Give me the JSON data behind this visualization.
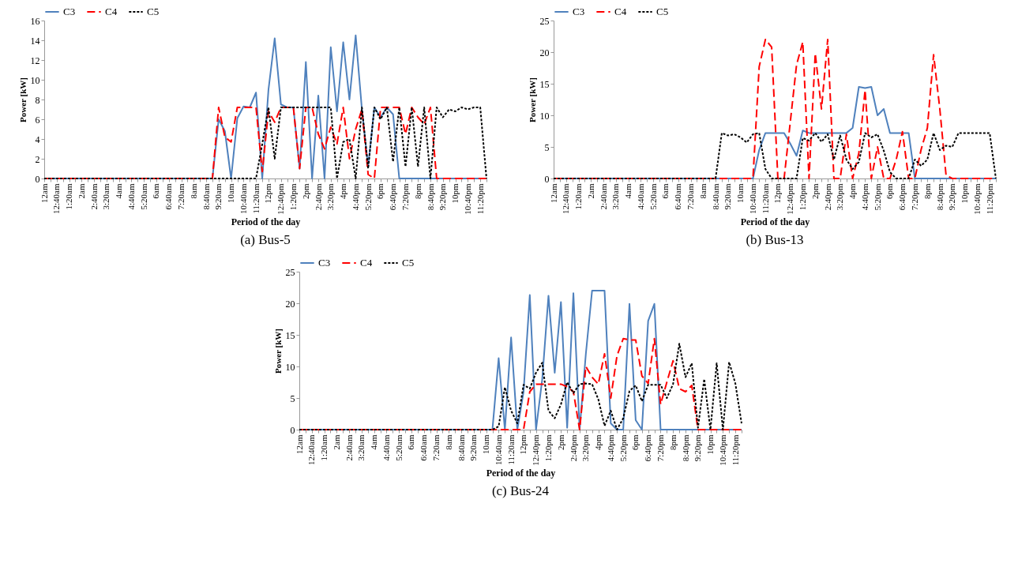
{
  "chart_data": [
    {
      "type": "line",
      "xlabel": "Period of the day",
      "ylabel": "Power [kW]",
      "annotations": [
        "(a) Bus-5"
      ],
      "legend": "top",
      "ylim": [
        0,
        16
      ],
      "yticks": [
        0,
        2,
        4,
        6,
        8,
        10,
        12,
        14,
        16
      ],
      "categories": [
        "12am",
        null,
        "12:40am",
        null,
        "1:20am",
        null,
        "2am",
        null,
        "2:40am",
        null,
        "3:20am",
        null,
        "4am",
        null,
        "4:40am",
        null,
        "5:20am",
        null,
        "6am",
        null,
        "6:40am",
        null,
        "7:20am",
        null,
        "8am",
        null,
        "8:40am",
        null,
        "9:20am",
        null,
        "10am",
        null,
        "10:40am",
        null,
        "11:20am",
        null,
        "12pm",
        null,
        "12:40pm",
        null,
        "1:20pm",
        null,
        "2pm",
        null,
        "2:40pm",
        null,
        "3:20pm",
        null,
        "4pm",
        null,
        "4:40pm",
        null,
        "5:20pm",
        null,
        "6pm",
        null,
        "6:40pm",
        null,
        "7:20pm",
        null,
        "8pm",
        null,
        "8:40pm",
        null,
        "9:20pm",
        null,
        "10pm",
        null,
        "10:40pm",
        null,
        "11:20pm",
        null
      ],
      "series": [
        {
          "name": "C3",
          "color": "#4f81bd",
          "line_style": "solid",
          "values": [
            0,
            0,
            0,
            0,
            0,
            0,
            0,
            0,
            0,
            0,
            0,
            0,
            0,
            0,
            0,
            0,
            0,
            0,
            0,
            0,
            0,
            0,
            0,
            0,
            0,
            0,
            0,
            0,
            6,
            4.8,
            0,
            6.1,
            7.3,
            7.2,
            8.7,
            0,
            9,
            14.2,
            7.5,
            7.2,
            7.2,
            1,
            11.8,
            0,
            8.4,
            0,
            13.3,
            6.8,
            13.8,
            8,
            14.5,
            7,
            1.2,
            7.2,
            6.2,
            7.2,
            6.5,
            0,
            0,
            0,
            0,
            0,
            0,
            0,
            0,
            0,
            0,
            0,
            0,
            0,
            0,
            0
          ]
        },
        {
          "name": "C4",
          "color": "#ff0000",
          "line_style": "dashed",
          "values": [
            0,
            0,
            0,
            0,
            0,
            0,
            0,
            0,
            0,
            0,
            0,
            0,
            0,
            0,
            0,
            0,
            0,
            0,
            0,
            0,
            0,
            0,
            0,
            0,
            0,
            0,
            0,
            0,
            7.2,
            4.2,
            3.7,
            7.2,
            7.2,
            7.2,
            7.2,
            0.7,
            6.8,
            5.7,
            7.2,
            7.2,
            7.2,
            1,
            7.2,
            7.2,
            4.5,
            3,
            5.2,
            3.5,
            7.2,
            2,
            5,
            7,
            0.4,
            0,
            7.2,
            7.2,
            7.2,
            7.2,
            4.5,
            7.2,
            6.2,
            5.5,
            7.2,
            0,
            0,
            0,
            0,
            0,
            0,
            0,
            0,
            0
          ]
        },
        {
          "name": "C5",
          "color": "#000000",
          "line_style": "dotted",
          "values": [
            0,
            0,
            0,
            0,
            0,
            0,
            0,
            0,
            0,
            0,
            0,
            0,
            0,
            0,
            0,
            0,
            0,
            0,
            0,
            0,
            0,
            0,
            0,
            0,
            0,
            0,
            0,
            0,
            0,
            0,
            0,
            0,
            0,
            0,
            0,
            3.5,
            7.2,
            2,
            7.2,
            7.2,
            7.2,
            7.2,
            7.2,
            7.2,
            7.2,
            7.2,
            7.2,
            0,
            3.7,
            4,
            0,
            7.2,
            1,
            7.2,
            6,
            7.2,
            1.7,
            7.2,
            1.2,
            7.2,
            1.2,
            7.2,
            0,
            7.2,
            6.2,
            7,
            6.8,
            7.2,
            7,
            7.2,
            7.2,
            0
          ]
        }
      ]
    },
    {
      "type": "line",
      "xlabel": "Period of the day",
      "ylabel": "Power [kW]",
      "annotations": [
        "(b) Bus-13"
      ],
      "legend": "top",
      "ylim": [
        0,
        25
      ],
      "yticks": [
        0,
        5,
        10,
        15,
        20,
        25
      ],
      "categories": [
        "12am",
        null,
        "12:40am",
        null,
        "1:20am",
        null,
        "2am",
        null,
        "2:40am",
        null,
        "3:20am",
        null,
        "4am",
        null,
        "4:40am",
        null,
        "5:20am",
        null,
        "6am",
        null,
        "6:40am",
        null,
        "7:20am",
        null,
        "8am",
        null,
        "8:40am",
        null,
        "9:20am",
        null,
        "10am",
        null,
        "10:40am",
        null,
        "11:20am",
        null,
        "12pm",
        null,
        "12:40pm",
        null,
        "1:20pm",
        null,
        "2pm",
        null,
        "2:40pm",
        null,
        "3:20pm",
        null,
        "4pm",
        null,
        "4:40pm",
        null,
        "5:20pm",
        null,
        "6pm",
        null,
        "6:40pm",
        null,
        "7:20pm",
        null,
        "8pm",
        null,
        "8:40pm",
        null,
        "9:20pm",
        null,
        "10pm",
        null,
        "10:40pm",
        null,
        "11:20pm",
        null
      ],
      "series": [
        {
          "name": "C3",
          "color": "#4f81bd",
          "line_style": "solid",
          "values": [
            0,
            0,
            0,
            0,
            0,
            0,
            0,
            0,
            0,
            0,
            0,
            0,
            0,
            0,
            0,
            0,
            0,
            0,
            0,
            0,
            0,
            0,
            0,
            0,
            0,
            0,
            0,
            0,
            0,
            0,
            0,
            0,
            0,
            4.5,
            7.2,
            7.2,
            7.2,
            7.2,
            5.5,
            3.6,
            7.6,
            7.2,
            7.2,
            7.2,
            7.2,
            7.2,
            7.2,
            7.2,
            8,
            14.5,
            14.3,
            14.5,
            10,
            11,
            7.2,
            7.2,
            7.2,
            7.2,
            0,
            0,
            0,
            0,
            0,
            0,
            0,
            0,
            0,
            0,
            0,
            0,
            0,
            0
          ]
        },
        {
          "name": "C4",
          "color": "#ff0000",
          "line_style": "dashed",
          "values": [
            0,
            0,
            0,
            0,
            0,
            0,
            0,
            0,
            0,
            0,
            0,
            0,
            0,
            0,
            0,
            0,
            0,
            0,
            0,
            0,
            0,
            0,
            0,
            0,
            0,
            0,
            0,
            0,
            0,
            0,
            0,
            0,
            0,
            17.7,
            22,
            20.8,
            0,
            0,
            9,
            18,
            21.6,
            0,
            19.8,
            11,
            22,
            0,
            0,
            7,
            0,
            4,
            14,
            0,
            5,
            0,
            0,
            3,
            7.4,
            0,
            0,
            4.6,
            8,
            19.6,
            11,
            0.5,
            0,
            0,
            0,
            0,
            0,
            0,
            0,
            0
          ]
        },
        {
          "name": "C5",
          "color": "#000000",
          "line_style": "dotted",
          "values": [
            0,
            0,
            0,
            0,
            0,
            0,
            0,
            0,
            0,
            0,
            0,
            0,
            0,
            0,
            0,
            0,
            0,
            0,
            0,
            0,
            0,
            0,
            0,
            0,
            0,
            0,
            0,
            7.2,
            6.8,
            7,
            6.5,
            5.7,
            7,
            7.2,
            1.5,
            0,
            0,
            0,
            0,
            0,
            6.4,
            6,
            7.2,
            5.8,
            7,
            3,
            6.8,
            3,
            1.5,
            2.6,
            7.2,
            6.5,
            7,
            4.4,
            1,
            0,
            0,
            0,
            3,
            2,
            3,
            7.2,
            4.5,
            5.2,
            5,
            7.2,
            7.2,
            7.2,
            7.2,
            7.2,
            7.2,
            0
          ]
        }
      ]
    },
    {
      "type": "line",
      "xlabel": "Period of the day",
      "ylabel": "Power [kW]",
      "annotations": [
        "(c) Bus-24"
      ],
      "legend": "top",
      "ylim": [
        0,
        25
      ],
      "yticks": [
        0,
        5,
        10,
        15,
        20,
        25
      ],
      "categories": [
        "12am",
        null,
        "12:40am",
        null,
        "1:20am",
        null,
        "2am",
        null,
        "2:40am",
        null,
        "3:20am",
        null,
        "4am",
        null,
        "4:40am",
        null,
        "5:20am",
        null,
        "6am",
        null,
        "6:40am",
        null,
        "7:20am",
        null,
        "8am",
        null,
        "8:40am",
        null,
        "9:20am",
        null,
        "10am",
        null,
        "10:40am",
        null,
        "11:20am",
        null,
        "12pm",
        null,
        "12:40pm",
        null,
        "1:20pm",
        null,
        "2pm",
        null,
        "2:40pm",
        null,
        "3:20pm",
        null,
        "4pm",
        null,
        "4:40pm",
        null,
        "5:20pm",
        null,
        "6pm",
        null,
        "6:40pm",
        null,
        "7:20pm",
        null,
        "8pm",
        null,
        "8:40pm",
        null,
        "9:20pm",
        null,
        "10pm",
        null,
        "10:40pm",
        null,
        "11:20pm",
        null
      ],
      "series": [
        {
          "name": "C3",
          "color": "#4f81bd",
          "line_style": "solid",
          "values": [
            0,
            0,
            0,
            0,
            0,
            0,
            0,
            0,
            0,
            0,
            0,
            0,
            0,
            0,
            0,
            0,
            0,
            0,
            0,
            0,
            0,
            0,
            0,
            0,
            0,
            0,
            0,
            0,
            0,
            0,
            0,
            0,
            11.3,
            0,
            14.6,
            0,
            6,
            21.3,
            0,
            8,
            21.2,
            9,
            20.2,
            0.3,
            21.6,
            0,
            12,
            22,
            22,
            22,
            1,
            0,
            0,
            19.9,
            1.5,
            0,
            17.2,
            19.9,
            0,
            0,
            0,
            0,
            0,
            0,
            0,
            0,
            0,
            0,
            0,
            0,
            0,
            0
          ]
        },
        {
          "name": "C4",
          "color": "#ff0000",
          "line_style": "dashed",
          "values": [
            0,
            0,
            0,
            0,
            0,
            0,
            0,
            0,
            0,
            0,
            0,
            0,
            0,
            0,
            0,
            0,
            0,
            0,
            0,
            0,
            0,
            0,
            0,
            0,
            0,
            0,
            0,
            0,
            0,
            0,
            0,
            0,
            0,
            0,
            0,
            0,
            0,
            6,
            7.2,
            7.2,
            7.2,
            7.2,
            7.2,
            6.8,
            6,
            0,
            10,
            8.3,
            7.2,
            12,
            5,
            11.7,
            14.4,
            14.2,
            14.2,
            8.5,
            7.3,
            14.4,
            4,
            7.5,
            10.9,
            6.5,
            6,
            7,
            0,
            0,
            0,
            0,
            0,
            0,
            0,
            0
          ]
        },
        {
          "name": "C5",
          "color": "#000000",
          "line_style": "dotted",
          "values": [
            0,
            0,
            0,
            0,
            0,
            0,
            0,
            0,
            0,
            0,
            0,
            0,
            0,
            0,
            0,
            0,
            0,
            0,
            0,
            0,
            0,
            0,
            0,
            0,
            0,
            0,
            0,
            0,
            0,
            0,
            0,
            0,
            0.5,
            6.7,
            3,
            1,
            7.1,
            6.5,
            9,
            10.6,
            3,
            1.8,
            4,
            7.5,
            5.8,
            7.2,
            7.3,
            7.2,
            4.8,
            0.6,
            3,
            0,
            1.8,
            6.1,
            7,
            4.5,
            7.1,
            7.1,
            7.1,
            5,
            7.2,
            13.6,
            8.3,
            10.5,
            0.3,
            8,
            0,
            10.5,
            0,
            10.7,
            7.3,
            1
          ]
        }
      ]
    }
  ]
}
